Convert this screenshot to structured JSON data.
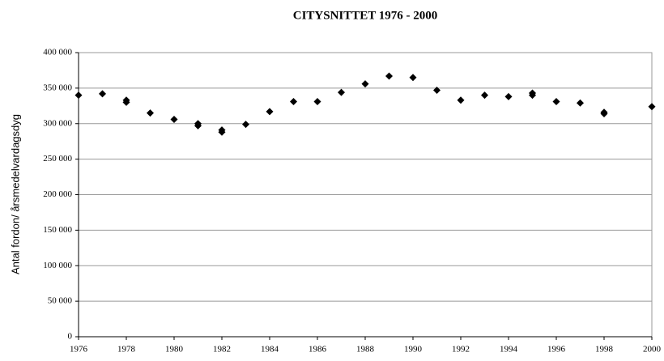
{
  "chart_data": {
    "type": "scatter",
    "title": "CITYSNITTET 1976 - 2000",
    "y_label": "Antal fordon/ årsmedelvardagsdyg",
    "color": "#000000",
    "grid": true,
    "x": [
      1976,
      1977,
      1978,
      1978,
      1979,
      1980,
      1981,
      1981,
      1982,
      1982,
      1983,
      1984,
      1985,
      1986,
      1987,
      1988,
      1989,
      1990,
      1991,
      1992,
      1993,
      1994,
      1995,
      1995,
      1996,
      1997,
      1998,
      1998,
      2000
    ],
    "values": [
      340000,
      342000,
      333000,
      330000,
      315000,
      306000,
      300000,
      297000,
      291000,
      288000,
      299000,
      317000,
      331000,
      331000,
      344000,
      356000,
      367000,
      365000,
      347000,
      333000,
      340000,
      338000,
      343000,
      340000,
      331000,
      329000,
      316000,
      314000,
      324000
    ],
    "xlim": [
      1976,
      2000
    ],
    "xticks": [
      1976,
      1978,
      1980,
      1982,
      1984,
      1986,
      1988,
      1990,
      1992,
      1994,
      1996,
      1998,
      2000
    ],
    "ylim": [
      0,
      400000
    ],
    "yticks": [
      0,
      {
        "value": 50000,
        "label": "50 000"
      },
      {
        "value": 100000,
        "label": "100 000"
      },
      {
        "value": 150000,
        "label": "150 000"
      },
      {
        "value": 200000,
        "label": "200 000"
      },
      {
        "value": 250000,
        "label": "250 000"
      },
      {
        "value": 300000,
        "label": "300 000"
      },
      {
        "value": 350000,
        "label": "350 000"
      },
      {
        "value": 400000,
        "label": "400 000"
      }
    ]
  }
}
